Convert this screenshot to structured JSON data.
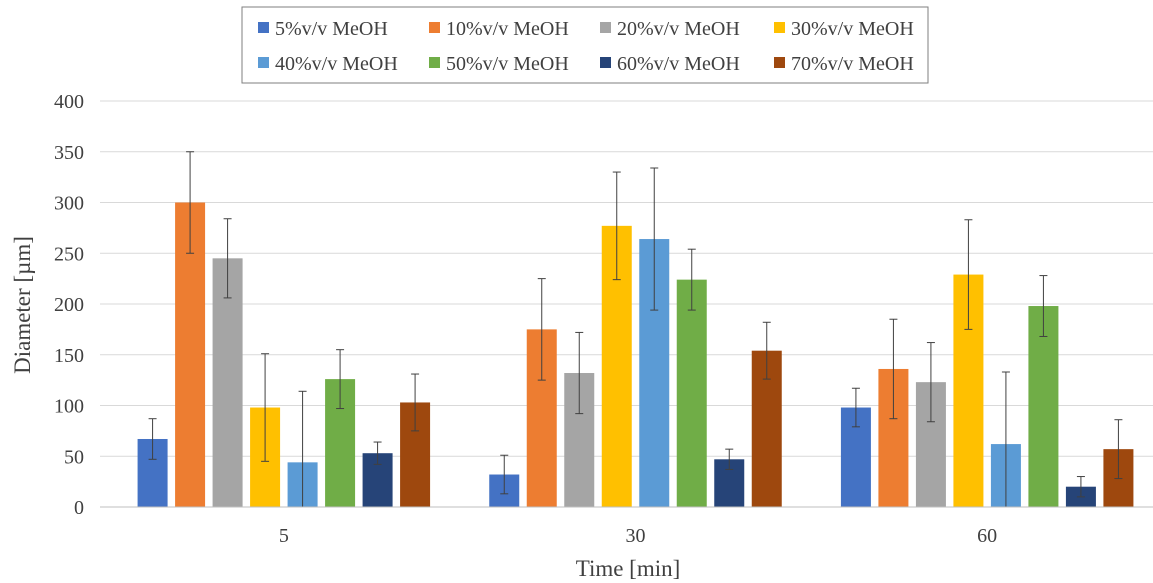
{
  "chart_data": {
    "type": "bar",
    "categories": [
      "5",
      "30",
      "60"
    ],
    "xlabel": "Time [min]",
    "ylabel": "Diameter [µm]",
    "ylim": [
      0,
      400
    ],
    "yticks": [
      0,
      50,
      100,
      150,
      200,
      250,
      300,
      350,
      400
    ],
    "grid": true,
    "legend_position": "top",
    "series": [
      {
        "name": "5%v/v MeOH",
        "color": "#4472C4",
        "values": [
          67,
          32,
          98
        ],
        "errors": [
          20,
          19,
          19
        ]
      },
      {
        "name": "10%v/v MeOH",
        "color": "#ED7D31",
        "values": [
          300,
          175,
          136
        ],
        "errors": [
          50,
          50,
          49
        ]
      },
      {
        "name": "20%v/v MeOH",
        "color": "#A5A5A5",
        "values": [
          245,
          132,
          123
        ],
        "errors": [
          39,
          40,
          39
        ]
      },
      {
        "name": "30%v/v MeOH",
        "color": "#FFC000",
        "values": [
          98,
          277,
          229
        ],
        "errors": [
          53,
          53,
          54
        ]
      },
      {
        "name": "40%v/v MeOH",
        "color": "#5B9BD5",
        "values": [
          44,
          264,
          62
        ],
        "errors": [
          70,
          70,
          71
        ]
      },
      {
        "name": "50%v/v MeOH",
        "color": "#70AD47",
        "values": [
          126,
          224,
          198
        ],
        "errors": [
          29,
          30,
          30
        ]
      },
      {
        "name": "60%v/v MeOH",
        "color": "#264478",
        "values": [
          53,
          47,
          20
        ],
        "errors": [
          11,
          10,
          10
        ]
      },
      {
        "name": "70%v/v MeOH",
        "color": "#9E480E",
        "values": [
          103,
          154,
          57
        ],
        "errors": [
          28,
          28,
          29
        ]
      }
    ]
  }
}
